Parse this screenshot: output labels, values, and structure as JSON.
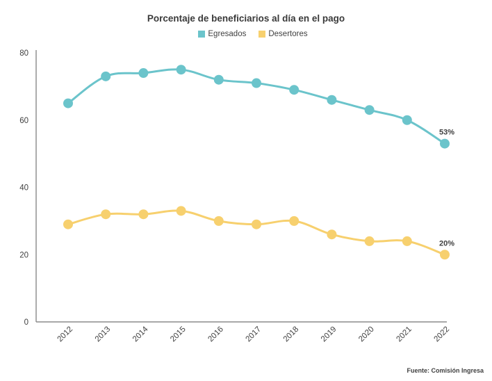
{
  "chart_data": {
    "type": "line",
    "title": "Porcentaje de beneficiarios al día en el pago",
    "xlabel": "",
    "ylabel": "",
    "categories": [
      "2012",
      "2013",
      "2014",
      "2015",
      "2016",
      "2017",
      "2018",
      "2019",
      "2020",
      "2021",
      "2022"
    ],
    "ylim": [
      0,
      80
    ],
    "yticks": [
      "0",
      "20",
      "40",
      "60",
      "80"
    ],
    "grid": false,
    "legend_position": "top",
    "series": [
      {
        "name": "Egresados",
        "color": "#6BC4CB",
        "values": [
          65,
          73,
          74,
          75,
          72,
          71,
          69,
          66,
          63,
          60,
          53
        ],
        "last_label": "53%"
      },
      {
        "name": "Desertores",
        "color": "#F7D06E",
        "values": [
          29,
          32,
          32,
          33,
          30,
          29,
          30,
          26,
          24,
          24,
          20
        ],
        "last_label": "20%"
      }
    ],
    "source": "Fuente: Comisión Ingresa"
  }
}
